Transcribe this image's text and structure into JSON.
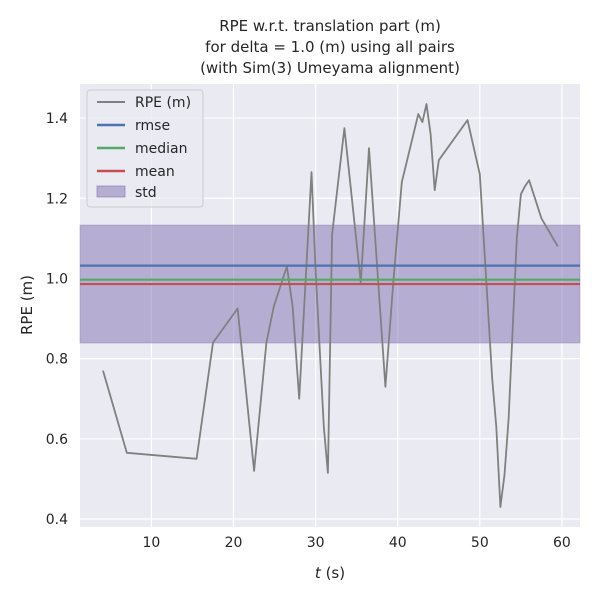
{
  "chart_data": {
    "type": "line",
    "title_lines": [
      "RPE w.r.t. translation part (m)",
      "for delta = 1.0 (m) using all pairs",
      "(with Sim(3) Umeyama alignment)"
    ],
    "xlabel_italic": "t",
    "xlabel_unit": " (s)",
    "ylabel": "RPE (m)",
    "xlim": [
      1.3,
      62.2
    ],
    "ylim": [
      0.38,
      1.485
    ],
    "xticks": [
      10,
      20,
      30,
      40,
      50,
      60
    ],
    "yticks": [
      0.4,
      0.6,
      0.8,
      1.0,
      1.2,
      1.4
    ],
    "ytick_labels": [
      "0.4",
      "0.6",
      "0.8",
      "1.0",
      "1.2",
      "1.4"
    ],
    "grid": true,
    "legend_position": "upper-left",
    "series": [
      {
        "name": "RPE (m)",
        "color": "#808080",
        "x": [
          4.1,
          7.0,
          15.5,
          17.5,
          20.5,
          22.5,
          24.0,
          24.9,
          26.5,
          27.2,
          28.0,
          29.5,
          30.0,
          31.0,
          31.5,
          32.0,
          33.5,
          35.5,
          36.5,
          38.5,
          39.5,
          40.5,
          42.5,
          43.0,
          43.5,
          44.0,
          44.5,
          45.0,
          48.5,
          50.0,
          51.5,
          52.0,
          52.5,
          53.0,
          53.5,
          54.5,
          55.0,
          55.5,
          56.0,
          57.5,
          59.5
        ],
        "y": [
          0.77,
          0.565,
          0.55,
          0.84,
          0.925,
          0.52,
          0.84,
          0.93,
          1.03,
          0.93,
          0.7,
          1.265,
          1.02,
          0.63,
          0.515,
          1.11,
          1.375,
          0.99,
          1.325,
          0.73,
          1.0,
          1.24,
          1.41,
          1.39,
          1.435,
          1.36,
          1.22,
          1.295,
          1.395,
          1.26,
          0.75,
          0.63,
          0.43,
          0.51,
          0.65,
          1.1,
          1.21,
          1.23,
          1.245,
          1.15,
          1.08
        ]
      }
    ],
    "rmse": {
      "name": "rmse",
      "value": 1.032,
      "color": "#4c72b0"
    },
    "median": {
      "name": "median",
      "value": 0.997,
      "color": "#55a868"
    },
    "mean": {
      "name": "mean",
      "value": 0.986,
      "color": "#c44e52"
    },
    "std": {
      "name": "std",
      "low": 0.839,
      "high": 1.133,
      "color": "#8172b2"
    }
  }
}
